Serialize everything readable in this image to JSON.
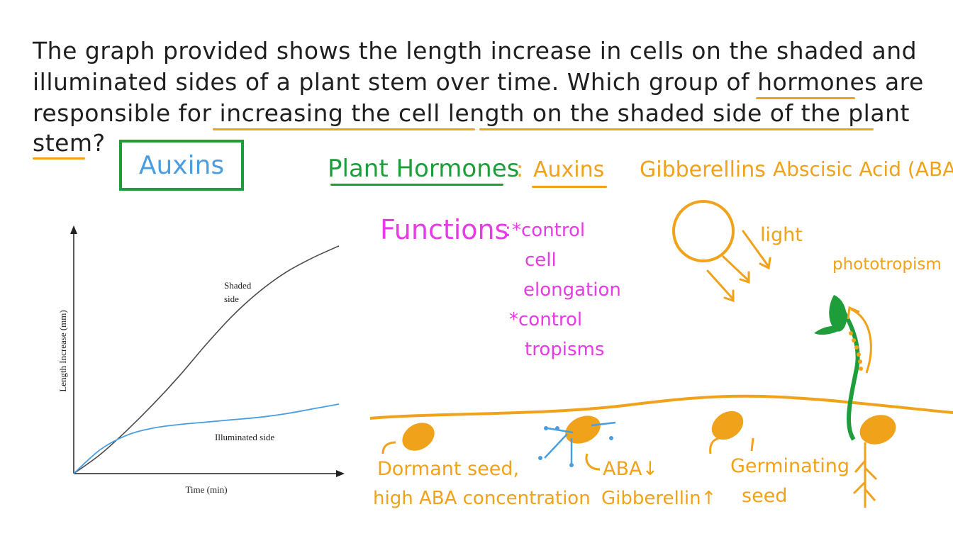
{
  "question": {
    "lines": [
      "The graph provided shows the length increase in cells on the shaded and",
      "illuminated sides of a plant stem over time. Which group of hormones are",
      "responsible for increasing the cell length on the shaded side of the plant",
      "stem?"
    ]
  },
  "answer": "Auxins",
  "hormones": {
    "title": "Plant Hormones",
    "colon": ":",
    "items": [
      "Auxins",
      "Gibberellins",
      "Abscisic Acid (ABA)"
    ]
  },
  "functions": {
    "title": "Functions",
    "colon": ":",
    "lines": [
      "*control",
      "cell",
      "elongation",
      "*control",
      "tropisms"
    ]
  },
  "labels": {
    "light": "light",
    "phototropism": "phototropism",
    "dormant_1": "Dormant seed,",
    "dormant_2": "high ABA concentration",
    "aba": "ABA↓",
    "gibberellin": "Gibberellin↑",
    "germinating_1": "Germinating",
    "germinating_2": "seed"
  },
  "colors": {
    "orange": "#f0a21a",
    "green": "#1e9e3a",
    "pink": "#e83be8",
    "blue": "#4a9ee0",
    "shaded_line": "#4a4a4a"
  },
  "chart_data": {
    "type": "line",
    "xlabel": "Time (min)",
    "ylabel": "Length Increase (mm)",
    "xlim": [
      0,
      10
    ],
    "ylim": [
      0,
      10
    ],
    "series": [
      {
        "name": "Shaded side",
        "x": [
          0,
          1,
          2,
          3,
          4,
          5,
          6,
          7,
          8,
          9,
          10
        ],
        "y": [
          0,
          0.8,
          1.8,
          2.9,
          4.1,
          5.4,
          6.6,
          7.6,
          8.4,
          9.0,
          9.5
        ]
      },
      {
        "name": "Illuminated side",
        "x": [
          0,
          1,
          2,
          3,
          4,
          5,
          6,
          7,
          8,
          9,
          10
        ],
        "y": [
          0,
          1.0,
          1.6,
          1.9,
          2.05,
          2.15,
          2.25,
          2.35,
          2.5,
          2.7,
          2.9
        ]
      }
    ]
  }
}
